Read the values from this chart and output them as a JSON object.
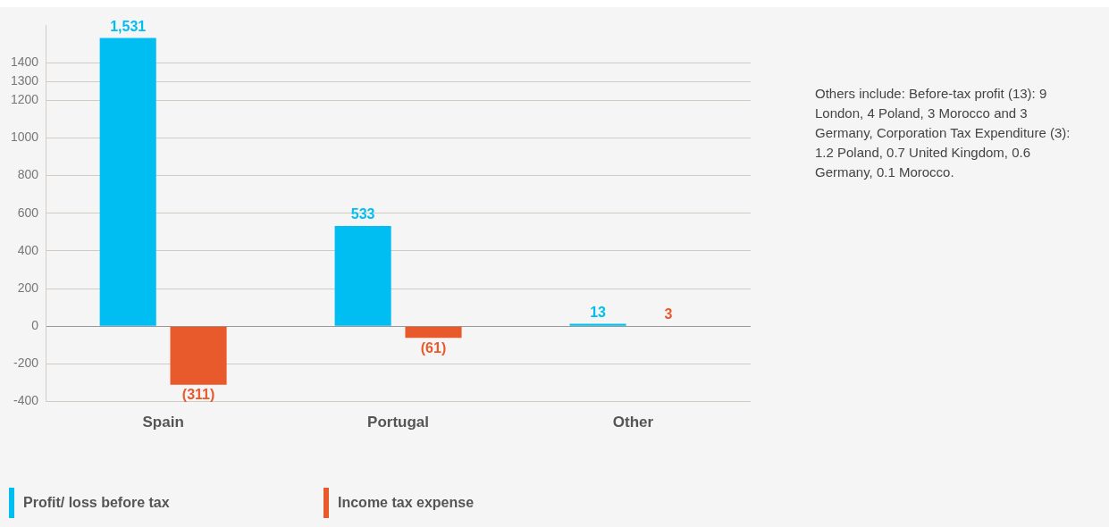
{
  "chart_data": {
    "type": "bar",
    "categories": [
      "Spain",
      "Portugal",
      "Other"
    ],
    "series": [
      {
        "name": "Profit/ loss before tax",
        "color": "#00bef2",
        "values": [
          1531,
          533,
          13
        ],
        "value_labels": [
          "1,531",
          "533",
          "13"
        ]
      },
      {
        "name": "Income tax expense",
        "color": "#e85a2c",
        "values": [
          -311,
          -61,
          3
        ],
        "value_labels": [
          "(311)",
          "(61)",
          "3"
        ]
      }
    ],
    "ylim": [
      -400,
      1600
    ],
    "yticks": [
      -400,
      -200,
      0,
      200,
      400,
      600,
      800,
      1000,
      1200,
      1300,
      1400
    ],
    "grid": "y",
    "legend": "bottom",
    "annotations": [
      "Others include: Before-tax profit (13): 9 London, 4 Poland, 3 Morocco and 3 Germany, Corporation Tax Expenditure (3): 1.2 Poland, 0.7 United Kingdom, 0.6 Germany, 0.1 Morocco."
    ]
  }
}
